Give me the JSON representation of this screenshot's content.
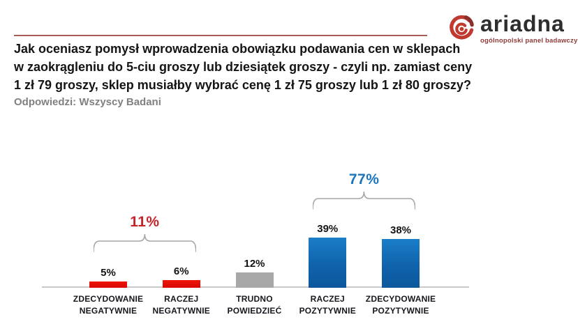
{
  "header": {
    "title_lines": [
      "Jak oceniasz pomysł wprowadzenia obowiązku podawania cen w sklepach",
      "w zaokrągleniu do 5-ciu groszy lub dziesiątek groszy - czyli np. zamiast ceny",
      "1 zł 79 groszy, sklep musiałby wybrać cenę 1 zł 75 groszy lub 1 zł 80 groszy?"
    ],
    "subtitle": "Odpowiedzi: Wszyscy Badani",
    "rule_color": "#a54a46"
  },
  "logo": {
    "brand": "ariadna",
    "tagline": "ogólnopolski panel badawczy",
    "icon": "ariadna-spiral-icon",
    "icon_color": "#c0392e",
    "icon_dark_color": "#8c2f2b",
    "brand_text_color": "#2e2e2e",
    "tagline_color": "#8f3b38"
  },
  "chart_data": {
    "type": "bar",
    "title": "",
    "xlabel": "",
    "ylabel": "",
    "grid": false,
    "legend": false,
    "ylim": [
      0,
      45
    ],
    "axis_line_color": "#c9c9c9",
    "categories": [
      "ZDECYDOWANIE NEGATYWNIE",
      "RACZEJ NEGATYWNIE",
      "TRUDNO POWIEDZIEĆ",
      "RACZEJ POZYTYWNIE",
      "ZDECYDOWANIE POZYTYWNIE"
    ],
    "category_lines": [
      "ZDECYDOWANIE\nNEGATYWNIE",
      "RACZEJ\nNEGATYWNIE",
      "TRUDNO\nPOWIEDZIEĆ",
      "RACZEJ\nPOZYTYWNIE",
      "ZDECYDOWANIE\nPOZYTYWNIE"
    ],
    "values": [
      5,
      6,
      12,
      39,
      38
    ],
    "value_labels": [
      "5%",
      "6%",
      "12%",
      "39%",
      "38%"
    ],
    "bar_colors": [
      "#e00d00",
      "#e00d00",
      "#a8a8a8",
      "#0f63ab",
      "#0f63ab"
    ],
    "bar_color_classes": [
      "red",
      "red",
      "gray",
      "blue",
      "blue"
    ],
    "value_label_color": "#141414",
    "annotations": [
      {
        "label": "11%",
        "value": 11,
        "bars": [
          0,
          1
        ],
        "label_color": "#c3252b",
        "brace_color": "#a6a6a6"
      },
      {
        "label": "77%",
        "value": 77,
        "bars": [
          3,
          4
        ],
        "label_color": "#1b75bc",
        "brace_color": "#a6a6a6"
      }
    ]
  }
}
